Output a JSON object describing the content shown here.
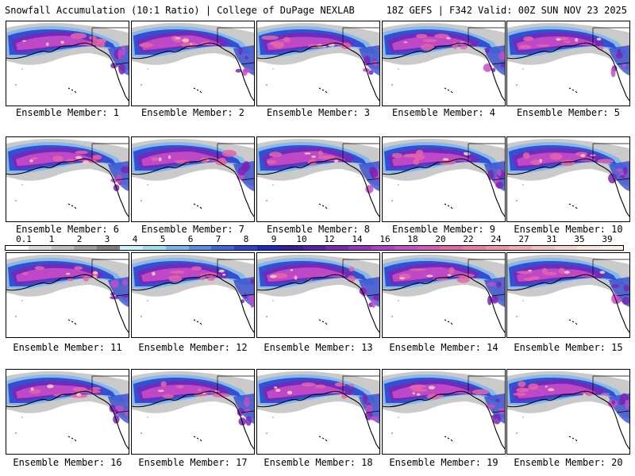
{
  "header": {
    "left_title": "Snowfall Accumulation (10:1 Ratio) | College of DuPage NEXLAB",
    "right_title": "18Z GEFS | F342 Valid: 00Z SUN NOV 23 2025"
  },
  "members": [
    {
      "label": "Ensemble Member: 1"
    },
    {
      "label": "Ensemble Member: 2"
    },
    {
      "label": "Ensemble Member: 3"
    },
    {
      "label": "Ensemble Member: 4"
    },
    {
      "label": "Ensemble Member: 5"
    },
    {
      "label": "Ensemble Member: 6"
    },
    {
      "label": "Ensemble Member: 7"
    },
    {
      "label": "Ensemble Member: 8"
    },
    {
      "label": "Ensemble Member: 9"
    },
    {
      "label": "Ensemble Member: 10"
    },
    {
      "label": "Ensemble Member: 11"
    },
    {
      "label": "Ensemble Member: 12"
    },
    {
      "label": "Ensemble Member: 13"
    },
    {
      "label": "Ensemble Member: 14"
    },
    {
      "label": "Ensemble Member: 15"
    },
    {
      "label": "Ensemble Member: 16"
    },
    {
      "label": "Ensemble Member: 17"
    },
    {
      "label": "Ensemble Member: 18"
    },
    {
      "label": "Ensemble Member: 19"
    },
    {
      "label": "Ensemble Member: 20"
    }
  ],
  "colorbar": {
    "labels": [
      "0.1",
      "1",
      "2",
      "3",
      "4",
      "5",
      "6",
      "7",
      "8",
      "9",
      "10",
      "12",
      "14",
      "16",
      "18",
      "20",
      "22",
      "24",
      "27",
      "31",
      "35",
      "39"
    ],
    "colors": [
      "#ffffff",
      "#d9d9d9",
      "#bdbdbd",
      "#9e9e9e",
      "#7f7f7f",
      "#c8f0ff",
      "#9edcf6",
      "#7ab6ee",
      "#5a8ee6",
      "#3f66dc",
      "#2a44cf",
      "#1c2bbd",
      "#3a1d9a",
      "#5a1ea8",
      "#7a25b5",
      "#9632c0",
      "#b03ec6",
      "#c84bc8",
      "#d957b8",
      "#e465a8",
      "#ea7ca1",
      "#ef93a4",
      "#f2aab0",
      "#f5c1bf",
      "#f7d3cc",
      "#fae3d9",
      "#fcf0e6"
    ]
  },
  "map_colors": {
    "ocean": "#ffffff",
    "land": "#ffffff",
    "border": "#000000",
    "snow_gray": "#9e9e9e",
    "snow_lightblue": "#7ab6ee",
    "snow_blue": "#2a44cf",
    "snow_purple": "#7a25b5",
    "snow_magenta": "#c84bc8",
    "snow_pink": "#e465a8",
    "snow_peach": "#f5c1bf"
  }
}
